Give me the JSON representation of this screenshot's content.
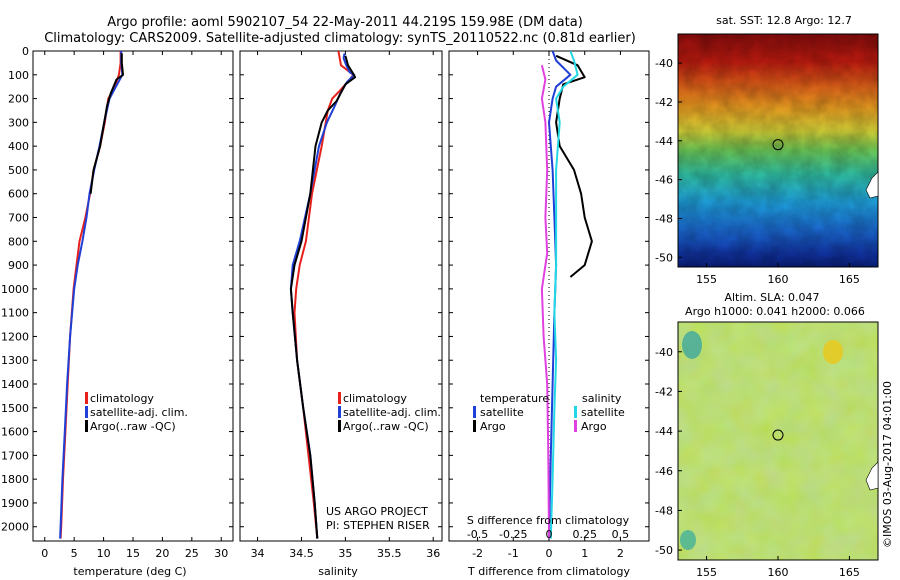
{
  "title": {
    "line1": "Argo profile: aoml 5902107_54 22-May-2011 44.219S 159.98E (DM data)",
    "line2": "Climatology: CARS2009. Satellite-adjusted climatology: synTS_20110522.nc (0.81d earlier)"
  },
  "colors": {
    "climatology": "#e8201c",
    "satellite": "#1f3fd6",
    "argo": "#000000",
    "sat_salinity": "#22d8e6",
    "argo_salinity": "#e040e0"
  },
  "credit": "©IMOS 03-Aug-2017 04:01:00",
  "chart_data": [
    {
      "type": "line",
      "id": "temperature",
      "xlabel": "temperature (deg C)",
      "ylabel": "",
      "xlim": [
        -2,
        32
      ],
      "ylim": [
        2060,
        0
      ],
      "xticks": [
        0,
        5,
        10,
        15,
        20,
        25,
        30
      ],
      "yticks": [
        0,
        100,
        200,
        300,
        400,
        500,
        600,
        700,
        800,
        900,
        1000,
        1100,
        1200,
        1300,
        1400,
        1500,
        1600,
        1700,
        1800,
        1900,
        2000
      ],
      "legend": [
        "climatology",
        "satellite-adj. clim.",
        "Argo(..raw -QC)"
      ],
      "series": [
        {
          "name": "climatology",
          "color": "#e8201c",
          "points": [
            [
              12.9,
              0
            ],
            [
              12.9,
              50
            ],
            [
              12.6,
              100
            ],
            [
              11.9,
              150
            ],
            [
              10.8,
              200
            ],
            [
              10.2,
              300
            ],
            [
              9.4,
              400
            ],
            [
              8.3,
              500
            ],
            [
              7.7,
              600
            ],
            [
              6.9,
              700
            ],
            [
              5.9,
              800
            ],
            [
              5.4,
              900
            ],
            [
              4.9,
              1000
            ],
            [
              4.3,
              1200
            ],
            [
              3.9,
              1400
            ],
            [
              3.5,
              1600
            ],
            [
              3.1,
              1800
            ],
            [
              2.8,
              2000
            ],
            [
              2.7,
              2050
            ]
          ]
        },
        {
          "name": "satellite-adj. clim.",
          "color": "#1f3fd6",
          "points": [
            [
              13.0,
              0
            ],
            [
              13.0,
              50
            ],
            [
              13.2,
              100
            ],
            [
              12.1,
              150
            ],
            [
              11.0,
              200
            ],
            [
              10.1,
              300
            ],
            [
              9.3,
              400
            ],
            [
              8.4,
              500
            ],
            [
              7.6,
              600
            ],
            [
              7.1,
              700
            ],
            [
              6.4,
              800
            ],
            [
              5.6,
              900
            ],
            [
              5.0,
              1000
            ],
            [
              4.3,
              1200
            ],
            [
              3.8,
              1400
            ],
            [
              3.4,
              1600
            ],
            [
              3.0,
              1800
            ],
            [
              2.7,
              2000
            ],
            [
              2.6,
              2050
            ]
          ]
        },
        {
          "name": "Argo(..raw -QC)",
          "color": "#000000",
          "points": [
            [
              13.1,
              10
            ],
            [
              13.1,
              50
            ],
            [
              13.3,
              100
            ],
            [
              12.2,
              120
            ],
            [
              11.2,
              180
            ],
            [
              10.6,
              230
            ],
            [
              10.1,
              300
            ],
            [
              9.4,
              400
            ],
            [
              8.3,
              500
            ],
            [
              7.8,
              600
            ]
          ]
        }
      ]
    },
    {
      "type": "line",
      "id": "salinity",
      "xlabel": "salinity",
      "xlim": [
        33.8,
        36.1
      ],
      "ylim": [
        2060,
        0
      ],
      "xticks": [
        34,
        34.5,
        35,
        35.5,
        36
      ],
      "legend": [
        "climatology",
        "satellite-adj. clim.",
        "Argo(..raw -QC)"
      ],
      "annotation": [
        "US ARGO PROJECT",
        "PI: STEPHEN RISER"
      ],
      "series": [
        {
          "name": "climatology",
          "color": "#e8201c",
          "points": [
            [
              34.92,
              0
            ],
            [
              34.95,
              60
            ],
            [
              35.02,
              80
            ],
            [
              35.09,
              100
            ],
            [
              35.05,
              120
            ],
            [
              34.93,
              170
            ],
            [
              34.85,
              200
            ],
            [
              34.8,
              250
            ],
            [
              34.73,
              400
            ],
            [
              34.62,
              600
            ],
            [
              34.55,
              800
            ],
            [
              34.48,
              900
            ],
            [
              34.44,
              1000
            ],
            [
              34.42,
              1100
            ],
            [
              34.45,
              1300
            ],
            [
              34.52,
              1500
            ],
            [
              34.58,
              1700
            ],
            [
              34.64,
              1900
            ],
            [
              34.68,
              2050
            ]
          ]
        },
        {
          "name": "satellite-adj. clim.",
          "color": "#1f3fd6",
          "points": [
            [
              34.99,
              10
            ],
            [
              34.98,
              30
            ],
            [
              35.01,
              60
            ],
            [
              35.05,
              90
            ],
            [
              35.1,
              100
            ],
            [
              35.02,
              130
            ],
            [
              34.94,
              180
            ],
            [
              34.88,
              230
            ],
            [
              34.79,
              300
            ],
            [
              34.7,
              400
            ],
            [
              34.6,
              600
            ],
            [
              34.48,
              800
            ],
            [
              34.4,
              900
            ],
            [
              34.38,
              1000
            ],
            [
              34.4,
              1100
            ],
            [
              34.45,
              1300
            ],
            [
              34.52,
              1500
            ],
            [
              34.6,
              1700
            ],
            [
              34.65,
              1900
            ],
            [
              34.68,
              2050
            ]
          ]
        },
        {
          "name": "Argo(..raw -QC)",
          "color": "#000000",
          "points": [
            [
              35.0,
              20
            ],
            [
              35.03,
              60
            ],
            [
              35.08,
              90
            ],
            [
              35.11,
              110
            ],
            [
              35.0,
              140
            ],
            [
              34.9,
              210
            ],
            [
              34.8,
              250
            ],
            [
              34.73,
              300
            ],
            [
              34.66,
              400
            ],
            [
              34.6,
              600
            ],
            [
              34.5,
              800
            ],
            [
              34.42,
              900
            ],
            [
              34.38,
              1000
            ],
            [
              34.4,
              1100
            ],
            [
              34.45,
              1300
            ],
            [
              34.52,
              1500
            ],
            [
              34.6,
              1700
            ],
            [
              34.65,
              1900
            ],
            [
              34.68,
              2050
            ]
          ]
        }
      ]
    },
    {
      "type": "line",
      "id": "difference",
      "xlabel": "T difference from climatology",
      "xlabel_top": "S difference from climatology",
      "xlim_T": [
        -2.8,
        2.8
      ],
      "xticks_T": [
        -2,
        -1,
        0,
        1,
        2
      ],
      "xticks_S": [
        "-0.5",
        "-0.25",
        "0",
        "0.25",
        "0.5"
      ],
      "xticks_S_pos": [
        -2,
        -1,
        0,
        1,
        2
      ],
      "ylim": [
        2060,
        0
      ],
      "legend": {
        "temperature_label": "temperature",
        "salinity_label": "salinity",
        "satellite": "satellite",
        "argo": "Argo"
      },
      "series": [
        {
          "name": "T satellite",
          "color": "#1f3fd6",
          "points": [
            [
              0.1,
              0
            ],
            [
              0.2,
              40
            ],
            [
              0.6,
              100
            ],
            [
              0.2,
              150
            ],
            [
              0.1,
              200
            ],
            [
              0.0,
              300
            ],
            [
              0.1,
              500
            ],
            [
              0.15,
              700
            ],
            [
              0.2,
              900
            ],
            [
              0.15,
              1100
            ],
            [
              0.1,
              1400
            ],
            [
              0.05,
              1700
            ],
            [
              0.0,
              2050
            ]
          ]
        },
        {
          "name": "T Argo",
          "color": "#000000",
          "points": [
            [
              0.2,
              20
            ],
            [
              0.8,
              60
            ],
            [
              1.0,
              110
            ],
            [
              0.4,
              140
            ],
            [
              0.3,
              200
            ],
            [
              0.2,
              300
            ],
            [
              0.3,
              400
            ],
            [
              0.7,
              500
            ],
            [
              0.9,
              600
            ],
            [
              1.0,
              700
            ],
            [
              1.2,
              800
            ],
            [
              1.0,
              900
            ],
            [
              0.6,
              950
            ]
          ]
        },
        {
          "name": "S satellite",
          "color": "#22d8e6",
          "points": [
            [
              0.6,
              0
            ],
            [
              0.7,
              40
            ],
            [
              0.8,
              100
            ],
            [
              0.4,
              150
            ],
            [
              0.2,
              200
            ],
            [
              0.3,
              300
            ],
            [
              0.2,
              500
            ],
            [
              0.2,
              700
            ],
            [
              0.2,
              900
            ],
            [
              0.15,
              1100
            ],
            [
              0.2,
              1300
            ],
            [
              0.15,
              1500
            ],
            [
              0.1,
              1800
            ],
            [
              0.05,
              2050
            ]
          ]
        },
        {
          "name": "S Argo",
          "color": "#e040e0",
          "points": [
            [
              -0.2,
              60
            ],
            [
              -0.1,
              120
            ],
            [
              -0.2,
              200
            ],
            [
              -0.1,
              300
            ],
            [
              -0.05,
              500
            ],
            [
              -0.1,
              700
            ],
            [
              -0.05,
              850
            ],
            [
              -0.2,
              1000
            ],
            [
              -0.15,
              1200
            ],
            [
              -0.05,
              1400
            ],
            [
              -0.02,
              1700
            ],
            [
              0.0,
              2050
            ]
          ]
        }
      ]
    },
    {
      "type": "heatmap",
      "id": "sst_map",
      "title": "sat. SST: 12.8 Argo: 12.7",
      "xticks": [
        "155",
        "160",
        "165"
      ],
      "yticks": [
        "-40",
        "-42",
        "-44",
        "-46",
        "-48",
        "-50"
      ],
      "xlim": [
        153,
        167
      ],
      "ylim": [
        -50.5,
        -38.5
      ],
      "marker": {
        "lon": 160,
        "lat": -44.2
      }
    },
    {
      "type": "heatmap",
      "id": "sla_map",
      "title": "Altim. SLA: 0.047",
      "subtitle": "Argo h1000: 0.041 h2000: 0.066",
      "xticks": [
        "155",
        "160",
        "165"
      ],
      "yticks": [
        "-40",
        "-42",
        "-44",
        "-46",
        "-48",
        "-50"
      ],
      "xlim": [
        153,
        167
      ],
      "ylim": [
        -50.5,
        -38.5
      ],
      "marker": {
        "lon": 160,
        "lat": -44.2
      }
    }
  ]
}
